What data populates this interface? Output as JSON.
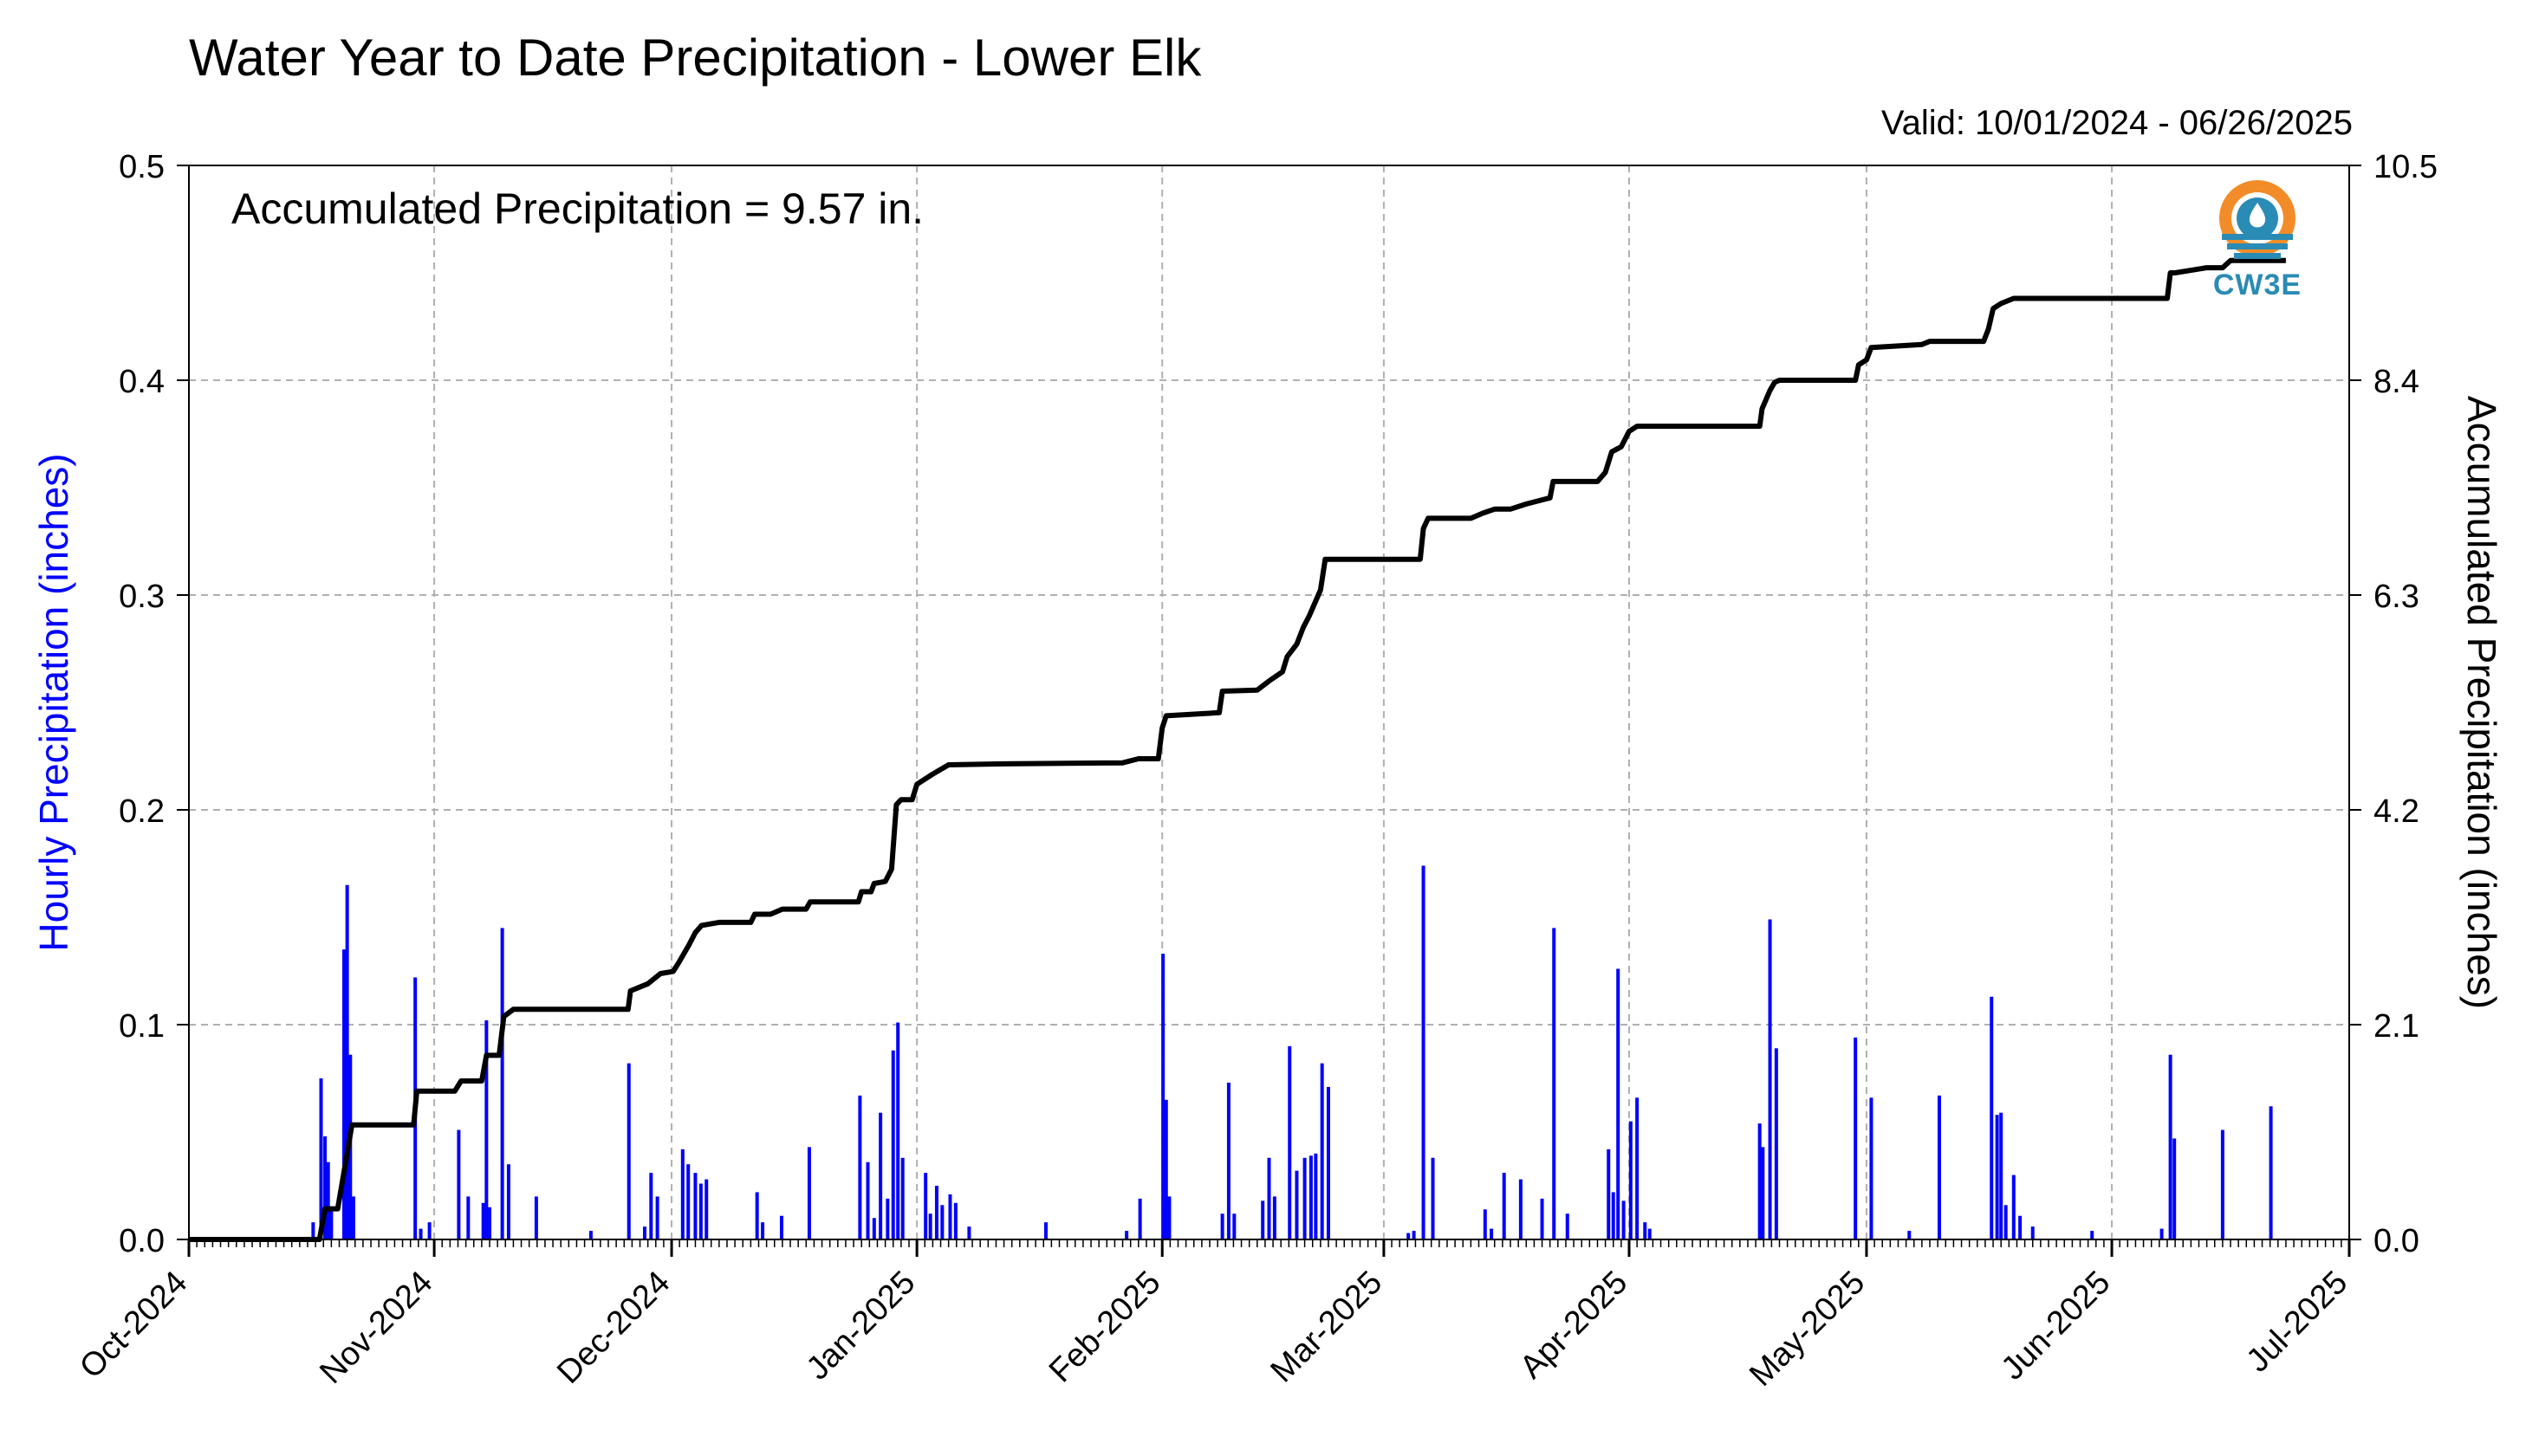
{
  "chart_data": {
    "type": "bar+line",
    "title": "Water Year to Date Precipitation - Lower Elk",
    "valid_text": "Valid: 10/01/2024 - 06/26/2025",
    "annotation": "Accumulated Precipitation = 9.57 in.",
    "logo_text": "CW3E",
    "y_left_label": "Hourly Precipitation (inches)",
    "y_right_label": "Accumulated Precipitation (inches)",
    "y_left_ticks": [
      "0.0",
      "0.1",
      "0.2",
      "0.3",
      "0.4",
      "0.5"
    ],
    "y_right_ticks": [
      "0.0",
      "2.1",
      "4.2",
      "6.3",
      "8.4",
      "10.5"
    ],
    "x_ticks": [
      "Oct-2024",
      "Nov-2024",
      "Dec-2024",
      "Jan-2025",
      "Feb-2025",
      "Mar-2025",
      "Apr-2025",
      "May-2025",
      "Jun-2025",
      "Jul-2025"
    ],
    "x_tick_days": [
      0,
      31,
      61,
      92,
      123,
      151,
      182,
      212,
      243,
      273
    ],
    "ylim_left": [
      0,
      0.5
    ],
    "ylim_right": [
      0,
      10.5
    ],
    "grid": true,
    "colors": {
      "bars": "#0000ff",
      "line": "#000000",
      "left_label": "#0000ff",
      "grid": "#b0b0b0"
    },
    "series": [
      {
        "name": "Hourly Precipitation",
        "type": "bar",
        "date_start": "2024-10-01",
        "points": [
          [
            15.7,
            0.008
          ],
          [
            16.7,
            0.075
          ],
          [
            17.2,
            0.048
          ],
          [
            17.6,
            0.036
          ],
          [
            18.0,
            0.015
          ],
          [
            19.6,
            0.135
          ],
          [
            20.0,
            0.165
          ],
          [
            20.4,
            0.086
          ],
          [
            20.8,
            0.02
          ],
          [
            28.6,
            0.122
          ],
          [
            29.3,
            0.005
          ],
          [
            30.4,
            0.008
          ],
          [
            34.1,
            0.051
          ],
          [
            35.3,
            0.02
          ],
          [
            37.2,
            0.017
          ],
          [
            37.6,
            0.102
          ],
          [
            38.0,
            0.015
          ],
          [
            39.6,
            0.145
          ],
          [
            40.4,
            0.035
          ],
          [
            43.9,
            0.02
          ],
          [
            50.8,
            0.004
          ],
          [
            55.6,
            0.082
          ],
          [
            57.6,
            0.006
          ],
          [
            58.4,
            0.031
          ],
          [
            59.2,
            0.02
          ],
          [
            62.4,
            0.042
          ],
          [
            63.1,
            0.035
          ],
          [
            64.0,
            0.031
          ],
          [
            64.7,
            0.026
          ],
          [
            65.4,
            0.028
          ],
          [
            71.8,
            0.022
          ],
          [
            72.5,
            0.008
          ],
          [
            74.9,
            0.011
          ],
          [
            78.4,
            0.043
          ],
          [
            84.8,
            0.067
          ],
          [
            85.8,
            0.036
          ],
          [
            86.6,
            0.01
          ],
          [
            87.4,
            0.059
          ],
          [
            88.3,
            0.019
          ],
          [
            89.0,
            0.088
          ],
          [
            89.6,
            0.101
          ],
          [
            90.2,
            0.038
          ],
          [
            93.1,
            0.031
          ],
          [
            93.7,
            0.012
          ],
          [
            94.5,
            0.025
          ],
          [
            95.2,
            0.016
          ],
          [
            96.2,
            0.021
          ],
          [
            96.9,
            0.017
          ],
          [
            98.6,
            0.006
          ],
          [
            108.3,
            0.008
          ],
          [
            118.5,
            0.004
          ],
          [
            120.2,
            0.019
          ],
          [
            123.1,
            0.133
          ],
          [
            123.5,
            0.065
          ],
          [
            123.9,
            0.02
          ],
          [
            130.6,
            0.012
          ],
          [
            131.4,
            0.073
          ],
          [
            132.1,
            0.012
          ],
          [
            135.7,
            0.018
          ],
          [
            136.5,
            0.038
          ],
          [
            137.2,
            0.02
          ],
          [
            139.1,
            0.09
          ],
          [
            140.0,
            0.032
          ],
          [
            141.0,
            0.038
          ],
          [
            141.8,
            0.039
          ],
          [
            142.4,
            0.04
          ],
          [
            143.2,
            0.082
          ],
          [
            144.0,
            0.071
          ],
          [
            154.1,
            0.003
          ],
          [
            154.8,
            0.004
          ],
          [
            156.0,
            0.174
          ],
          [
            157.2,
            0.038
          ],
          [
            163.8,
            0.014
          ],
          [
            164.6,
            0.005
          ],
          [
            166.2,
            0.031
          ],
          [
            168.3,
            0.028
          ],
          [
            171.0,
            0.019
          ],
          [
            172.5,
            0.145
          ],
          [
            174.2,
            0.012
          ],
          [
            179.4,
            0.042
          ],
          [
            180.0,
            0.022
          ],
          [
            180.6,
            0.126
          ],
          [
            181.3,
            0.018
          ],
          [
            182.2,
            0.055
          ],
          [
            183.0,
            0.066
          ],
          [
            184.0,
            0.008
          ],
          [
            184.6,
            0.005
          ],
          [
            198.5,
            0.054
          ],
          [
            198.9,
            0.043
          ],
          [
            199.8,
            0.149
          ],
          [
            200.6,
            0.089
          ],
          [
            210.6,
            0.094
          ],
          [
            212.6,
            0.066
          ],
          [
            217.4,
            0.004
          ],
          [
            221.2,
            0.067
          ],
          [
            227.8,
            0.113
          ],
          [
            228.5,
            0.058
          ],
          [
            229.0,
            0.059
          ],
          [
            229.6,
            0.016
          ],
          [
            230.6,
            0.03
          ],
          [
            231.4,
            0.011
          ],
          [
            233.0,
            0.006
          ],
          [
            240.5,
            0.004
          ],
          [
            249.3,
            0.005
          ],
          [
            250.4,
            0.086
          ],
          [
            250.9,
            0.047
          ],
          [
            257.0,
            0.051
          ],
          [
            263.1,
            0.062
          ]
        ]
      },
      {
        "name": "Accumulated Precipitation",
        "type": "step-line",
        "date_start": "2024-10-01",
        "points": [
          [
            0,
            0
          ],
          [
            16.5,
            0
          ],
          [
            17.2,
            0.3
          ],
          [
            18.8,
            0.3
          ],
          [
            19.8,
            0.75
          ],
          [
            20.6,
            1.12
          ],
          [
            28.4,
            1.12
          ],
          [
            28.8,
            1.45
          ],
          [
            33.6,
            1.45
          ],
          [
            34.4,
            1.55
          ],
          [
            37.0,
            1.55
          ],
          [
            37.6,
            1.8
          ],
          [
            39.2,
            1.8
          ],
          [
            39.8,
            2.18
          ],
          [
            41.0,
            2.25
          ],
          [
            48.0,
            2.25
          ],
          [
            55.5,
            2.25
          ],
          [
            55.8,
            2.43
          ],
          [
            58.0,
            2.5
          ],
          [
            59.6,
            2.6
          ],
          [
            61.2,
            2.62
          ],
          [
            62.0,
            2.72
          ],
          [
            63.2,
            2.88
          ],
          [
            64.0,
            3.0
          ],
          [
            64.8,
            3.07
          ],
          [
            67.0,
            3.1
          ],
          [
            71.0,
            3.1
          ],
          [
            71.5,
            3.18
          ],
          [
            73.5,
            3.18
          ],
          [
            75.0,
            3.23
          ],
          [
            78.0,
            3.23
          ],
          [
            78.5,
            3.3
          ],
          [
            84.6,
            3.3
          ],
          [
            85.0,
            3.4
          ],
          [
            86.2,
            3.4
          ],
          [
            86.6,
            3.48
          ],
          [
            88.0,
            3.5
          ],
          [
            88.8,
            3.62
          ],
          [
            89.4,
            4.25
          ],
          [
            90.0,
            4.3
          ],
          [
            91.4,
            4.3
          ],
          [
            92.0,
            4.45
          ],
          [
            94.0,
            4.55
          ],
          [
            96.0,
            4.64
          ],
          [
            103.0,
            4.65
          ],
          [
            118.0,
            4.66
          ],
          [
            120.0,
            4.7
          ],
          [
            122.5,
            4.7
          ],
          [
            123.0,
            5.0
          ],
          [
            123.5,
            5.12
          ],
          [
            128.0,
            5.14
          ],
          [
            130.2,
            5.15
          ],
          [
            130.6,
            5.36
          ],
          [
            135.0,
            5.37
          ],
          [
            136.5,
            5.46
          ],
          [
            138.2,
            5.55
          ],
          [
            138.8,
            5.7
          ],
          [
            140.0,
            5.82
          ],
          [
            140.8,
            5.98
          ],
          [
            141.6,
            6.1
          ],
          [
            143.0,
            6.35
          ],
          [
            143.6,
            6.65
          ],
          [
            155.6,
            6.65
          ],
          [
            156.0,
            6.95
          ],
          [
            156.6,
            7.05
          ],
          [
            162.0,
            7.05
          ],
          [
            163.5,
            7.1
          ],
          [
            165.0,
            7.14
          ],
          [
            167.0,
            7.14
          ],
          [
            169.0,
            7.19
          ],
          [
            172.0,
            7.25
          ],
          [
            172.4,
            7.41
          ],
          [
            178.0,
            7.41
          ],
          [
            179.0,
            7.5
          ],
          [
            179.8,
            7.7
          ],
          [
            181.0,
            7.75
          ],
          [
            182.0,
            7.9
          ],
          [
            183.0,
            7.95
          ],
          [
            197.0,
            7.95
          ],
          [
            198.5,
            7.95
          ],
          [
            198.8,
            8.12
          ],
          [
            199.8,
            8.3
          ],
          [
            200.4,
            8.38
          ],
          [
            201.0,
            8.4
          ],
          [
            210.6,
            8.4
          ],
          [
            211.0,
            8.55
          ],
          [
            212.0,
            8.6
          ],
          [
            212.6,
            8.72
          ],
          [
            219.0,
            8.75
          ],
          [
            220.0,
            8.78
          ],
          [
            226.8,
            8.78
          ],
          [
            227.4,
            8.9
          ],
          [
            228.0,
            9.1
          ],
          [
            229.0,
            9.15
          ],
          [
            230.6,
            9.2
          ],
          [
            231.4,
            9.2
          ],
          [
            250.0,
            9.2
          ],
          [
            250.4,
            9.45
          ],
          [
            251.0,
            9.45
          ],
          [
            255.0,
            9.5
          ],
          [
            257.0,
            9.5
          ],
          [
            258.0,
            9.57
          ],
          [
            265.0,
            9.57
          ]
        ]
      }
    ]
  }
}
